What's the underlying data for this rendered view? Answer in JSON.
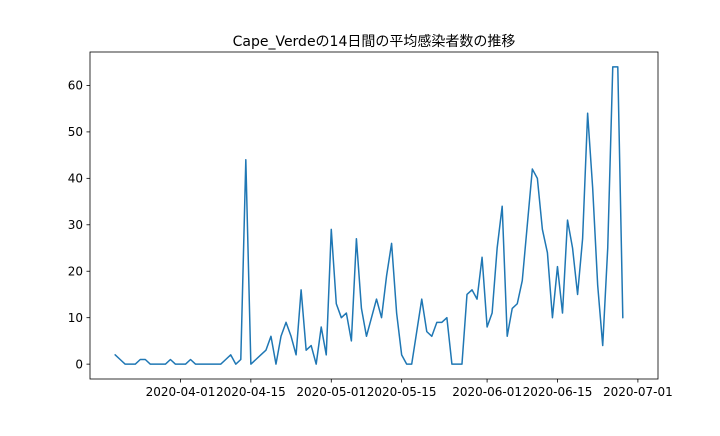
{
  "chart_data": {
    "type": "line",
    "title": "Cape_Verdeの14日間の平均感染者数の推移",
    "xlabel": "",
    "ylabel": "",
    "grid": false,
    "legend": "none",
    "x_start": "2020-03-19",
    "x_end": "2020-06-30",
    "xlim": [
      "2020-03-14",
      "2020-07-05"
    ],
    "ylim": [
      -3.2,
      67.2
    ],
    "x_ticks": [
      "2020-04-01",
      "2020-04-15",
      "2020-05-01",
      "2020-05-15",
      "2020-06-01",
      "2020-06-15",
      "2020-07-01"
    ],
    "y_ticks": [
      0,
      10,
      20,
      30,
      40,
      50,
      60
    ],
    "line_color": "#1f77b4",
    "series": [
      {
        "values": [
          2,
          1,
          0,
          0,
          0,
          1,
          1,
          0,
          0,
          0,
          0,
          1,
          0,
          0,
          0,
          1,
          0,
          0,
          0,
          0,
          0,
          0,
          1,
          2,
          0,
          1,
          44,
          0,
          1,
          2,
          3,
          6,
          0,
          6,
          9,
          6,
          2,
          16,
          3,
          4,
          0,
          8,
          2,
          29,
          13,
          10,
          11,
          5,
          27,
          12,
          6,
          10,
          14,
          10,
          19,
          26,
          11,
          2,
          0,
          0,
          7,
          14,
          7,
          6,
          9,
          9,
          10,
          0,
          0,
          0,
          15,
          16,
          14,
          23,
          8,
          11,
          25,
          34,
          6,
          12,
          13,
          18,
          30,
          42,
          40,
          29,
          24,
          10,
          21,
          11,
          31,
          25,
          15,
          27,
          54,
          38,
          17,
          4,
          25,
          64,
          64,
          10
        ]
      }
    ]
  }
}
